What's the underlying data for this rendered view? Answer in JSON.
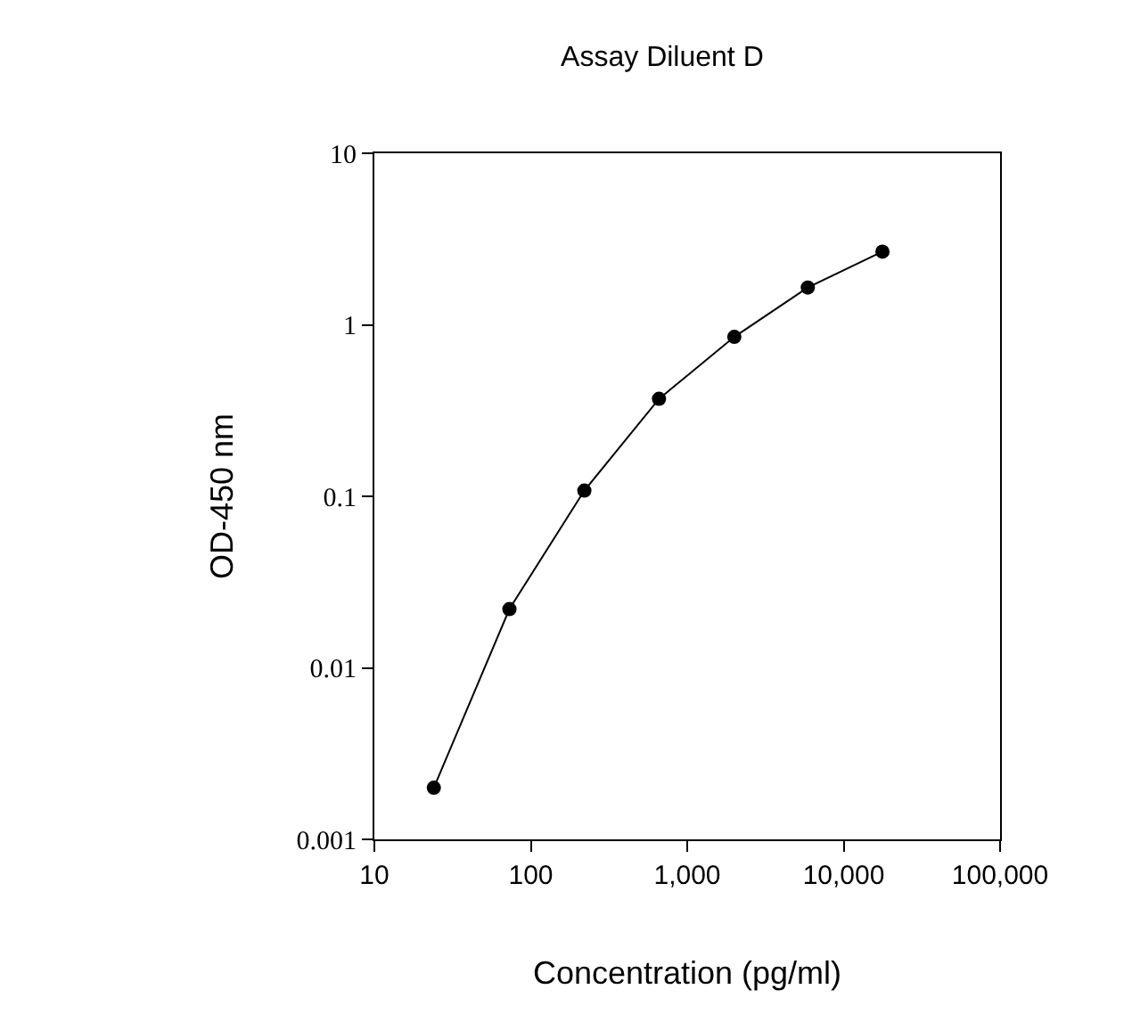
{
  "chart_data": {
    "type": "line",
    "title": "Assay Diluent D",
    "xlabel": "Concentration (pg/ml)",
    "ylabel": "OD-450 nm",
    "log": "xy",
    "grid": false,
    "marker": "circle",
    "line_style": "solid",
    "x": [
      24,
      73,
      220,
      660,
      2000,
      5900,
      17700
    ],
    "series": [
      {
        "color": "#000000",
        "values": [
          0.002,
          0.022,
          0.108,
          0.37,
          0.85,
          1.65,
          2.67
        ]
      }
    ],
    "xlim": [
      10,
      100000
    ],
    "ylim": [
      0.001,
      10
    ],
    "xticks": [
      10,
      100,
      {
        "value": 1000,
        "label": "1,000"
      },
      {
        "value": 10000,
        "label": "10,000"
      },
      {
        "value": 100000,
        "label": "100,000"
      }
    ],
    "yticks": [
      0.001,
      0.01,
      0.1,
      1,
      10
    ]
  }
}
